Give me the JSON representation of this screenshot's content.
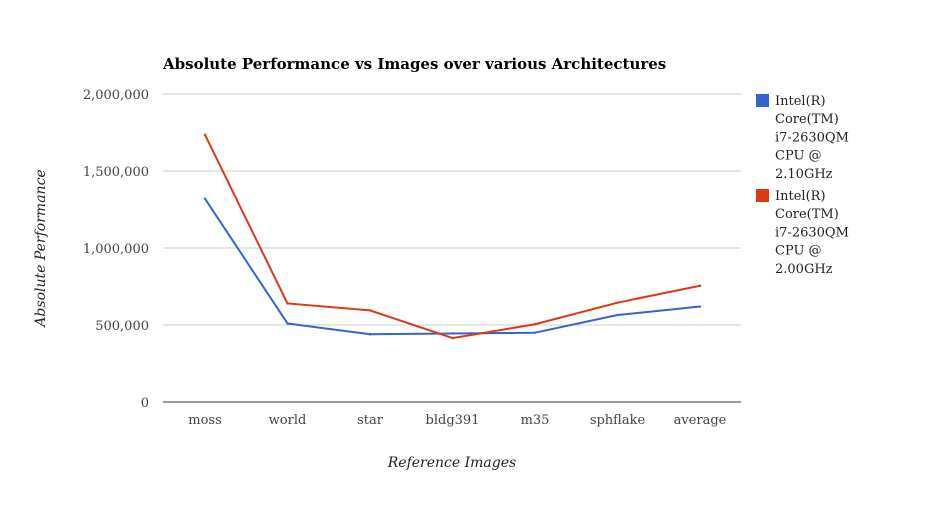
{
  "chart_data": {
    "type": "line",
    "title": "Absolute Performance vs Images over various Architectures",
    "xlabel": "Reference Images",
    "ylabel": "Absolute Performance",
    "categories": [
      "moss",
      "world",
      "star",
      "bldg391",
      "m35",
      "sphflake",
      "average"
    ],
    "ylim": [
      0,
      2000000
    ],
    "yticks": [
      0,
      500000,
      1000000,
      1500000,
      2000000
    ],
    "ytick_labels": [
      "0",
      "500,000",
      "1,000,000",
      "1,500,000",
      "2,000,000"
    ],
    "grid": true,
    "legend_position": "right",
    "series": [
      {
        "name": "Intel(R) Core(TM) i7-2630QM CPU @ 2.10GHz",
        "legend_lines": [
          "Intel(R)",
          "Core(TM)",
          "i7-2630QM",
          "CPU @",
          "2.10GHz"
        ],
        "color": "#3366cc",
        "values": [
          1320000,
          510000,
          440000,
          445000,
          450000,
          565000,
          620000
        ]
      },
      {
        "name": "Intel(R) Core(TM) i7-2630QM CPU @ 2.00GHz",
        "legend_lines": [
          "Intel(R)",
          "Core(TM)",
          "i7-2630QM",
          "CPU @",
          "2.00GHz"
        ],
        "color": "#dc3912",
        "values": [
          1735000,
          640000,
          595000,
          415000,
          505000,
          645000,
          755000
        ]
      }
    ]
  }
}
